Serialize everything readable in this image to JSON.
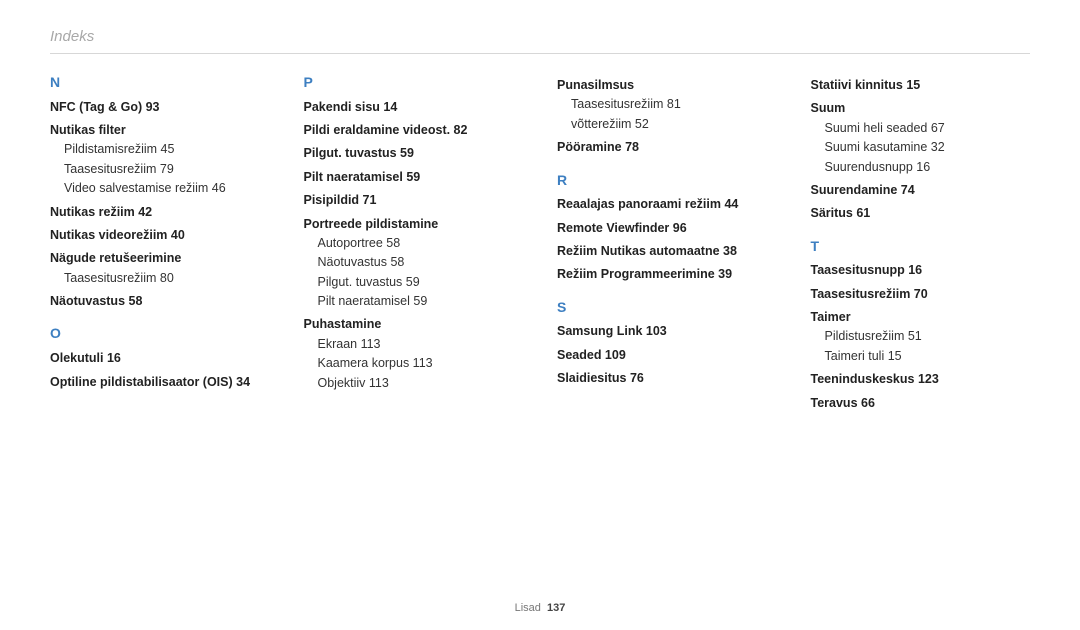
{
  "header": "Indeks",
  "footer_label": "Lisad",
  "footer_page": "137",
  "accent_color": "#3d7fc1",
  "text_color": "#262626",
  "rule_color": "#d7d7d7",
  "background_color": "#ffffff",
  "font_sizes": {
    "header": 15,
    "letter": 14,
    "body": 12.5,
    "footer": 11
  },
  "columns": [
    {
      "items": [
        {
          "type": "letter",
          "text": "N"
        },
        {
          "type": "entry",
          "text": "NFC (Tag & Go)  93"
        },
        {
          "type": "entry",
          "text": "Nutikas filter"
        },
        {
          "type": "sub",
          "text": "Pildistamisrežiim  45"
        },
        {
          "type": "sub",
          "text": "Taasesitusrežiim  79"
        },
        {
          "type": "sub",
          "text": "Video salvestamise režiim  46"
        },
        {
          "type": "entry",
          "text": "Nutikas režiim  42"
        },
        {
          "type": "entry",
          "text": "Nutikas videorežiim  40"
        },
        {
          "type": "entry",
          "text": "Nägude retušeerimine"
        },
        {
          "type": "sub",
          "text": "Taasesitusrežiim  80"
        },
        {
          "type": "entry",
          "text": "Näotuvastus  58"
        },
        {
          "type": "letter",
          "text": "O"
        },
        {
          "type": "entry",
          "text": "Olekutuli  16"
        },
        {
          "type": "entry",
          "text": "Optiline pildistabilisaator (OIS)  34"
        }
      ]
    },
    {
      "items": [
        {
          "type": "letter",
          "text": "P"
        },
        {
          "type": "entry",
          "text": "Pakendi sisu  14"
        },
        {
          "type": "entry",
          "text": "Pildi eraldamine videost.  82"
        },
        {
          "type": "entry",
          "text": "Pilgut. tuvastus  59"
        },
        {
          "type": "entry",
          "text": "Pilt naeratamisel  59"
        },
        {
          "type": "entry",
          "text": "Pisipildid  71"
        },
        {
          "type": "entry",
          "text": "Portreede pildistamine"
        },
        {
          "type": "sub",
          "text": "Autoportree  58"
        },
        {
          "type": "sub",
          "text": "Näotuvastus  58"
        },
        {
          "type": "sub",
          "text": "Pilgut. tuvastus  59"
        },
        {
          "type": "sub",
          "text": "Pilt naeratamisel  59"
        },
        {
          "type": "entry",
          "text": "Puhastamine"
        },
        {
          "type": "sub",
          "text": "Ekraan  113"
        },
        {
          "type": "sub",
          "text": "Kaamera korpus  113"
        },
        {
          "type": "sub",
          "text": "Objektiiv  113"
        }
      ]
    },
    {
      "items": [
        {
          "type": "entry",
          "text": "Punasilmsus"
        },
        {
          "type": "sub",
          "text": "Taasesitusrežiim  81"
        },
        {
          "type": "sub",
          "text": "võtterežiim  52"
        },
        {
          "type": "entry",
          "text": "Pööramine  78"
        },
        {
          "type": "letter",
          "text": "R"
        },
        {
          "type": "entry",
          "text": "Reaalajas panoraami režiim  44"
        },
        {
          "type": "entry",
          "text": "Remote Viewfinder  96"
        },
        {
          "type": "entry",
          "text": "Režiim Nutikas automaatne  38"
        },
        {
          "type": "entry",
          "text": "Režiim Programmeerimine  39"
        },
        {
          "type": "letter",
          "text": "S"
        },
        {
          "type": "entry",
          "text": "Samsung Link  103"
        },
        {
          "type": "entry",
          "text": "Seaded  109"
        },
        {
          "type": "entry",
          "text": "Slaidiesitus  76"
        }
      ]
    },
    {
      "items": [
        {
          "type": "entry",
          "text": "Statiivi kinnitus  15"
        },
        {
          "type": "entry",
          "text": "Suum"
        },
        {
          "type": "sub",
          "text": "Suumi heli seaded  67"
        },
        {
          "type": "sub",
          "text": "Suumi kasutamine  32"
        },
        {
          "type": "sub",
          "text": "Suurendusnupp  16"
        },
        {
          "type": "entry",
          "text": "Suurendamine  74"
        },
        {
          "type": "entry",
          "text": "Säritus  61"
        },
        {
          "type": "letter",
          "text": "T"
        },
        {
          "type": "entry",
          "text": "Taasesitusnupp  16"
        },
        {
          "type": "entry",
          "text": "Taasesitusrežiim  70"
        },
        {
          "type": "entry",
          "text": "Taimer"
        },
        {
          "type": "sub",
          "text": "Pildistusrežiim  51"
        },
        {
          "type": "sub",
          "text": "Taimeri tuli  15"
        },
        {
          "type": "entry",
          "text": "Teeninduskeskus  123"
        },
        {
          "type": "entry",
          "text": "Teravus  66"
        }
      ]
    }
  ]
}
